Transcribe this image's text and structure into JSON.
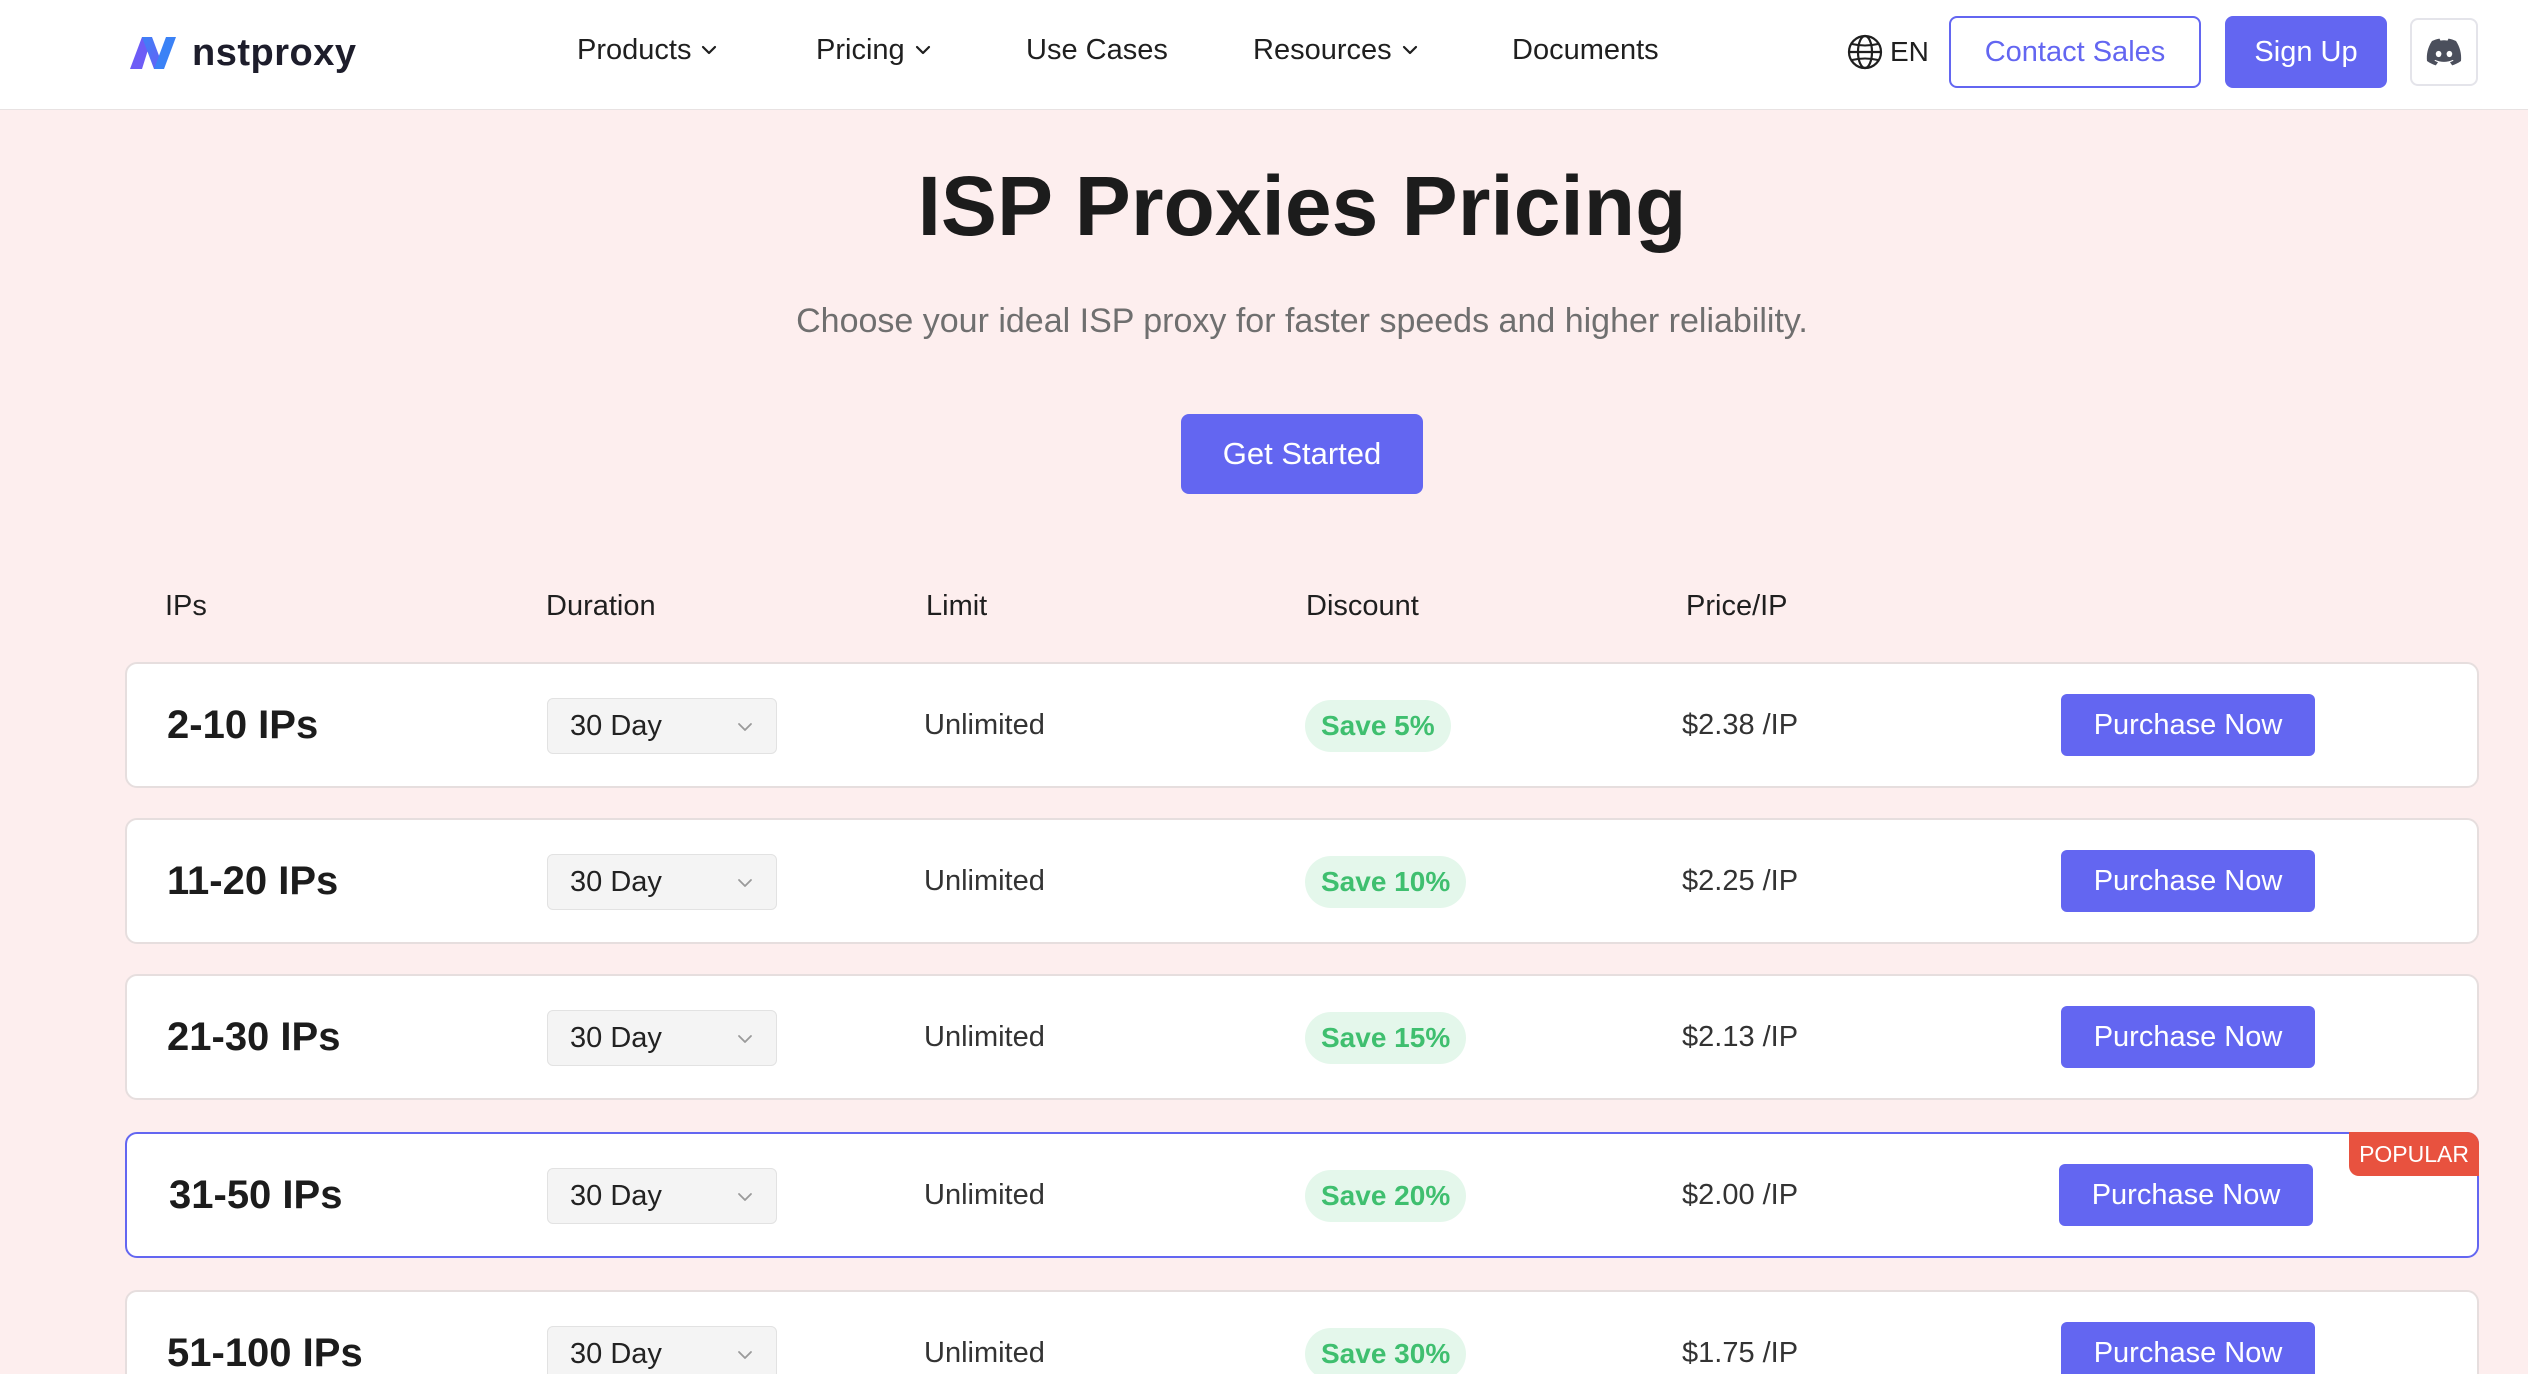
{
  "header": {
    "logo_text": "nstproxy",
    "nav": [
      {
        "label": "Products",
        "has_dropdown": true
      },
      {
        "label": "Pricing",
        "has_dropdown": true
      },
      {
        "label": "Use Cases",
        "has_dropdown": false
      },
      {
        "label": "Resources",
        "has_dropdown": true
      },
      {
        "label": "Documents",
        "has_dropdown": false
      }
    ],
    "language": "EN",
    "contact_label": "Contact Sales",
    "signup_label": "Sign Up"
  },
  "hero": {
    "title": "ISP Proxies Pricing",
    "subtitle": "Choose your ideal ISP proxy for faster speeds and higher reliability.",
    "cta_label": "Get Started"
  },
  "table": {
    "columns": [
      "IPs",
      "Duration",
      "Limit",
      "Discount",
      "Price/IP"
    ],
    "rows": [
      {
        "ips": "2-10 IPs",
        "duration": "30 Day",
        "limit": "Unlimited",
        "discount": "Save 5%",
        "price": "$2.38 /IP",
        "action": "Purchase Now",
        "popular": false
      },
      {
        "ips": "11-20 IPs",
        "duration": "30 Day",
        "limit": "Unlimited",
        "discount": "Save 10%",
        "price": "$2.25 /IP",
        "action": "Purchase Now",
        "popular": false
      },
      {
        "ips": "21-30 IPs",
        "duration": "30 Day",
        "limit": "Unlimited",
        "discount": "Save 15%",
        "price": "$2.13 /IP",
        "action": "Purchase Now",
        "popular": false
      },
      {
        "ips": "31-50 IPs",
        "duration": "30 Day",
        "limit": "Unlimited",
        "discount": "Save 20%",
        "price": "$2.00 /IP",
        "action": "Purchase Now",
        "popular": true,
        "popular_label": "POPULAR"
      },
      {
        "ips": "51-100 IPs",
        "duration": "30 Day",
        "limit": "Unlimited",
        "discount": "Save 30%",
        "price": "$1.75 /IP",
        "action": "Purchase Now",
        "popular": false
      }
    ]
  },
  "colors": {
    "accent": "#6366f1",
    "page_background": "#fdeeee",
    "discount_text": "#3fbf6f",
    "discount_background": "#e4f7eb",
    "popular_tag": "#e8523f"
  },
  "icons": {
    "logo": "nstproxy-logo-icon",
    "dropdown": "chevron-down-icon",
    "language": "globe-icon",
    "community": "discord-icon"
  }
}
